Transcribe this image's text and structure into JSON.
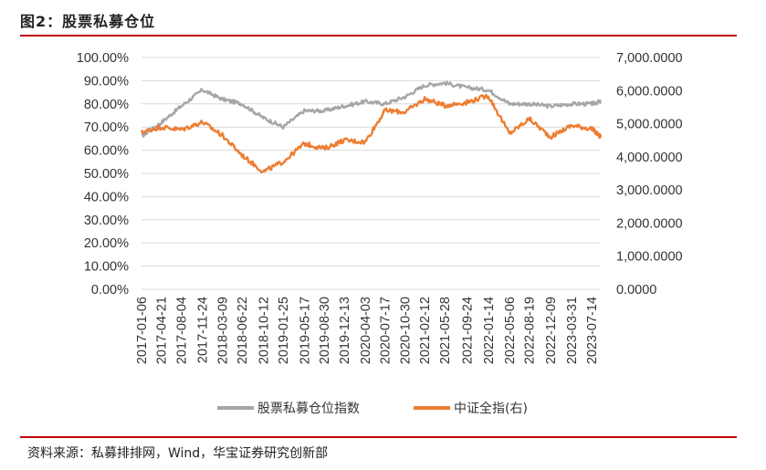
{
  "title": "图2：股票私募仓位",
  "source": "资料来源：私募排排网，Wind，华宝证券研究创新部",
  "colors": {
    "accent_rule": "#c00000",
    "series_gray": "#a6a6a6",
    "series_orange": "#ed7d31",
    "grid": "#d9d9d9"
  },
  "chart_data": {
    "type": "line",
    "title": "",
    "xlabel": "",
    "ylabel": "",
    "ylabel_right": "",
    "grid": true,
    "legend_position": "bottom",
    "y_ticks": [
      "100.00%",
      "90.00%",
      "80.00%",
      "70.00%",
      "60.00%",
      "50.00%",
      "40.00%",
      "30.00%",
      "20.00%",
      "10.00%",
      "0.00%"
    ],
    "y2_ticks": [
      "7,000.0000",
      "6,000.0000",
      "5,000.0000",
      "4,000.0000",
      "3,000.0000",
      "2,000.0000",
      "1,000.0000",
      "0.0000"
    ],
    "ylim": [
      0,
      100
    ],
    "y2lim": [
      0,
      7000
    ],
    "x_tick_labels": [
      "2017-01-06",
      "2017-04-21",
      "2017-08-04",
      "2017-11-24",
      "2018-03-09",
      "2018-06-22",
      "2018-10-12",
      "2019-01-25",
      "2019-05-17",
      "2019-08-30",
      "2019-12-13",
      "2020-04-03",
      "2020-07-17",
      "2020-10-30",
      "2021-02-12",
      "2021-05-28",
      "2021-09-24",
      "2022-01-14",
      "2022-05-06",
      "2022-08-19",
      "2022-12-09",
      "2023-03-31",
      "2023-07-14"
    ],
    "series": [
      {
        "name": "股票私募仓位指数",
        "axis": "left",
        "color": "#a6a6a6",
        "x": [
          "2017-01-06",
          "2017-04-21",
          "2017-08-04",
          "2017-11-24",
          "2018-03-09",
          "2018-06-22",
          "2018-10-12",
          "2019-01-25",
          "2019-05-17",
          "2019-08-30",
          "2019-12-13",
          "2020-04-03",
          "2020-07-17",
          "2020-10-30",
          "2021-02-12",
          "2021-05-28",
          "2021-09-24",
          "2022-01-14",
          "2022-05-06",
          "2022-08-19",
          "2022-12-09",
          "2023-03-31",
          "2023-07-14",
          "2023-09-01"
        ],
        "values": [
          66,
          72,
          79,
          86,
          82,
          80,
          74,
          70,
          77,
          77,
          79,
          81,
          80,
          83,
          88,
          89,
          87,
          86,
          80,
          80,
          79,
          80,
          80,
          81
        ]
      },
      {
        "name": "中证全指(右)",
        "axis": "right",
        "color": "#ed7d31",
        "x": [
          "2017-01-06",
          "2017-04-21",
          "2017-08-04",
          "2017-11-24",
          "2018-03-09",
          "2018-06-22",
          "2018-10-12",
          "2019-01-25",
          "2019-05-17",
          "2019-08-30",
          "2019-12-13",
          "2020-04-03",
          "2020-07-17",
          "2020-10-30",
          "2021-02-12",
          "2021-05-28",
          "2021-09-24",
          "2022-01-14",
          "2022-05-06",
          "2022-08-19",
          "2022-12-09",
          "2023-03-31",
          "2023-07-14",
          "2023-09-01"
        ],
        "values": [
          4750,
          4900,
          4820,
          5050,
          4650,
          4050,
          3550,
          3850,
          4400,
          4250,
          4500,
          4450,
          5400,
          5350,
          5750,
          5550,
          5650,
          5850,
          4700,
          5150,
          4600,
          4950,
          4850,
          4600
        ]
      }
    ]
  }
}
